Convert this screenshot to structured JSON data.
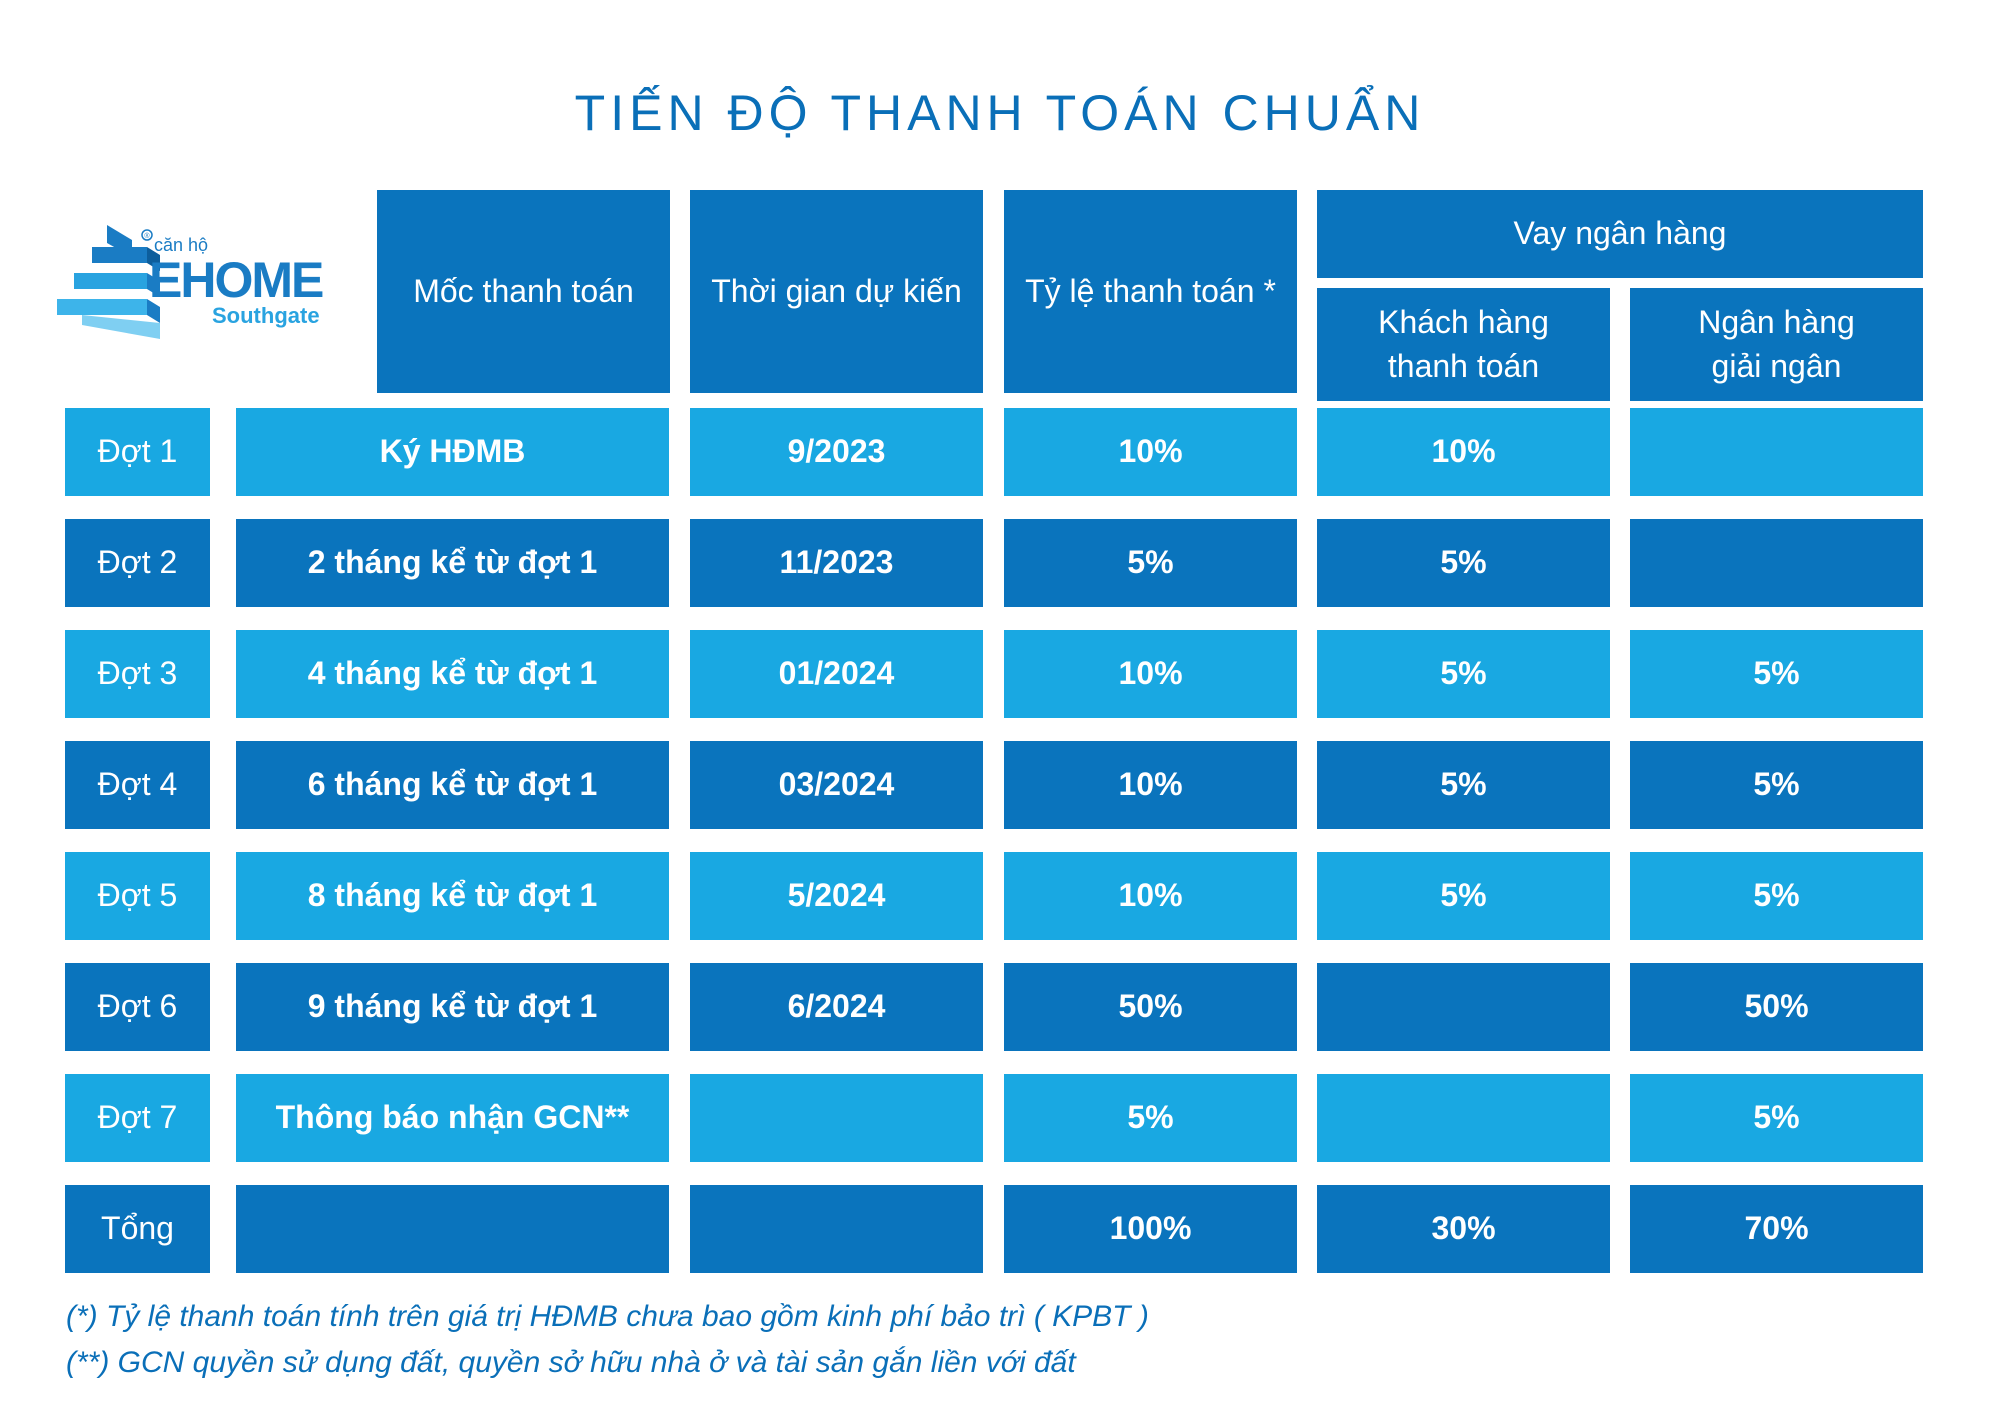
{
  "title": "TIẾN ĐỘ THANH TOÁN CHUẨN",
  "logo": {
    "small_text": "căn hộ",
    "brand": "EHOME",
    "sub": "Southgate",
    "reg": "®"
  },
  "headers": {
    "milestone": "Mốc thanh toán",
    "expected_time": "Thời gian dự kiến",
    "payment_rate": "Tỷ lệ thanh toán *",
    "bank_loan": "Vay ngân hàng",
    "customer_pays": "Khách hàng thanh toán",
    "bank_disburses": "Ngân hàng giải ngân"
  },
  "rows": [
    {
      "phase": "Đợt 1",
      "milestone": "Ký HĐMB",
      "time": "9/2023",
      "rate": "10%",
      "customer": "10%",
      "bank": ""
    },
    {
      "phase": "Đợt 2",
      "milestone": "2 tháng kể từ đợt 1",
      "time": "11/2023",
      "rate": "5%",
      "customer": "5%",
      "bank": ""
    },
    {
      "phase": "Đợt 3",
      "milestone": "4 tháng kể từ đợt 1",
      "time": "01/2024",
      "rate": "10%",
      "customer": "5%",
      "bank": "5%"
    },
    {
      "phase": "Đợt 4",
      "milestone": "6 tháng kể từ đợt 1",
      "time": "03/2024",
      "rate": "10%",
      "customer": "5%",
      "bank": "5%"
    },
    {
      "phase": "Đợt 5",
      "milestone": "8 tháng kể từ đợt 1",
      "time": "5/2024",
      "rate": "10%",
      "customer": "5%",
      "bank": "5%"
    },
    {
      "phase": "Đợt 6",
      "milestone": "9 tháng kể từ đợt 1",
      "time": "6/2024",
      "rate": "50%",
      "customer": "",
      "bank": "50%"
    },
    {
      "phase": "Đợt 7",
      "milestone": "Thông báo nhận GCN**",
      "time": "",
      "rate": "5%",
      "customer": "",
      "bank": "5%"
    },
    {
      "phase": "Tổng",
      "milestone": "",
      "time": "",
      "rate": "100%",
      "customer": "30%",
      "bank": "70%"
    }
  ],
  "notes": [
    "(*) Tỷ lệ thanh toán tính trên giá trị HĐMB chưa bao gồm kinh phí bảo trì ( KPBT )",
    "(**) GCN quyền sử dụng đất, quyền sở hữu nhà ở và tài sản gắn liền với đất"
  ],
  "colors": {
    "dark": "#0a74bd",
    "light": "#19a8e2",
    "title": "#0a6fb8"
  }
}
